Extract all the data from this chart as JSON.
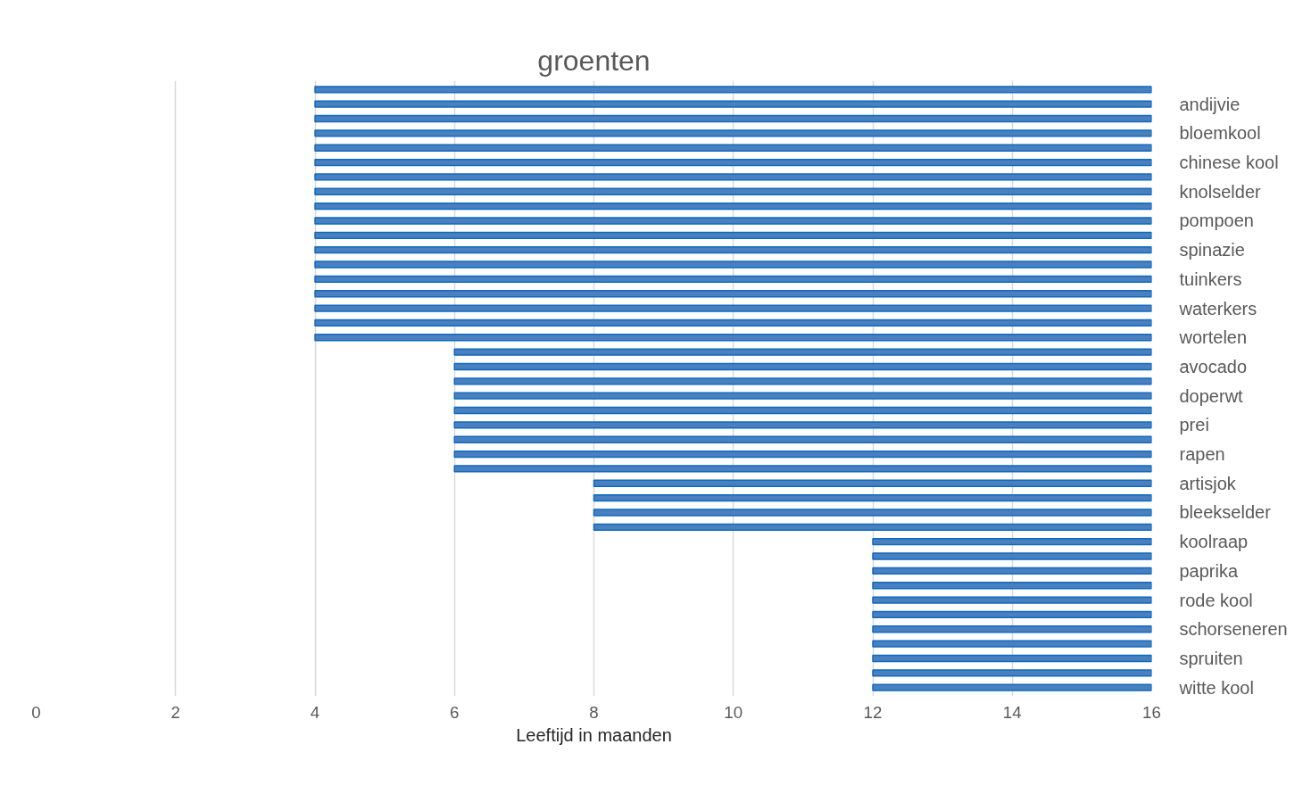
{
  "chart_data": {
    "type": "bar",
    "orientation": "horizontal",
    "title": "groenten",
    "xlabel": "Leeftijd in maanden",
    "categories": [
      null,
      "andijvie",
      null,
      "bloemkool",
      null,
      "chinese kool",
      null,
      "knolselder",
      null,
      "pompoen",
      null,
      "spinazie",
      null,
      "tuinkers",
      null,
      "waterkers",
      null,
      "wortelen",
      null,
      "avocado",
      null,
      "doperwt",
      null,
      "prei",
      null,
      "rapen",
      null,
      "artisjok",
      null,
      "bleekselder",
      null,
      "koolraap",
      null,
      "paprika",
      null,
      "rode kool",
      null,
      "schorseneren",
      null,
      "spruiten",
      null,
      "witte kool"
    ],
    "base": [
      4,
      4,
      4,
      4,
      4,
      4,
      4,
      4,
      4,
      4,
      4,
      4,
      4,
      4,
      4,
      4,
      4,
      4,
      6,
      6,
      6,
      6,
      6,
      6,
      6,
      6,
      6,
      8,
      8,
      8,
      8,
      12,
      12,
      12,
      12,
      12,
      12,
      12,
      12,
      12,
      12,
      12
    ],
    "values": [
      12,
      12,
      12,
      12,
      12,
      12,
      12,
      12,
      12,
      12,
      12,
      12,
      12,
      12,
      12,
      12,
      12,
      12,
      10,
      10,
      10,
      10,
      10,
      10,
      10,
      10,
      10,
      8,
      8,
      8,
      8,
      4,
      4,
      4,
      4,
      4,
      4,
      4,
      4,
      4,
      4,
      4
    ],
    "color": "#4a7fc0",
    "xlim": [
      0,
      16
    ],
    "xticks": [
      0,
      2,
      4,
      6,
      8,
      10,
      12,
      14,
      16
    ],
    "grid": "x"
  }
}
